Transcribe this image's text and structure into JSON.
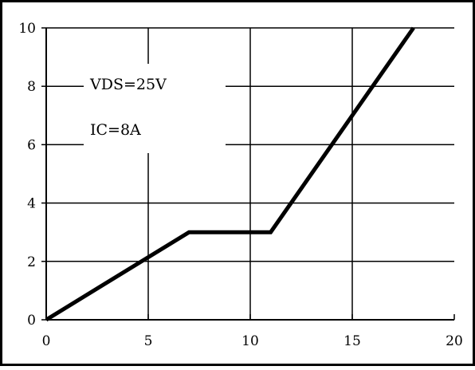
{
  "chart_data": {
    "type": "line",
    "title": "",
    "xlabel": "",
    "ylabel": "",
    "xlim": [
      0,
      20
    ],
    "ylim": [
      0,
      10
    ],
    "x_ticks": [
      0,
      5,
      10,
      15,
      20
    ],
    "y_ticks": [
      0,
      2,
      4,
      6,
      8,
      10
    ],
    "grid": true,
    "annotations": [
      "VDS=25V",
      "IC=8A"
    ],
    "series": [
      {
        "x": [
          0,
          7,
          11,
          18
        ],
        "y": [
          0,
          3,
          3,
          10
        ]
      }
    ]
  },
  "colors": {
    "line": "#000000",
    "grid": "#000000",
    "background": "#ffffff"
  }
}
